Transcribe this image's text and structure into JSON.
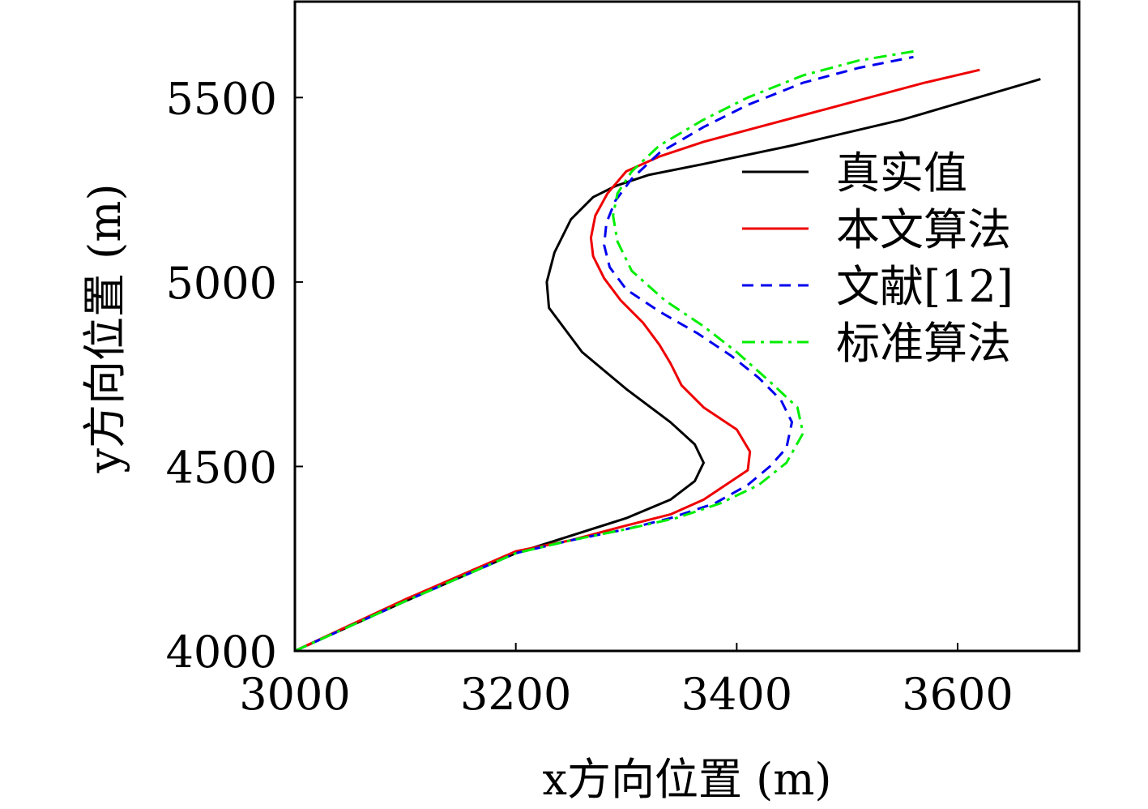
{
  "chart_data": {
    "type": "line",
    "xlabel": "x方向位置 (m)",
    "ylabel": "y方向位置 (m)",
    "xlim": [
      3000,
      3710
    ],
    "ylim": [
      4000,
      5760
    ],
    "xticks": [
      "3000",
      "3200",
      "3400",
      "3600"
    ],
    "yticks": [
      "4000",
      "4500",
      "5000",
      "5500"
    ],
    "grid": false,
    "legend_position": "right",
    "series": [
      {
        "name": "真实值",
        "color": "#000000",
        "dash": "solid",
        "x": [
          3000,
          3100,
          3200,
          3300,
          3340,
          3362,
          3370,
          3362,
          3340,
          3300,
          3260,
          3230,
          3228,
          3235,
          3250,
          3270,
          3290,
          3320,
          3370,
          3450,
          3550,
          3675
        ],
        "y": [
          4000,
          4135,
          4265,
          4360,
          4410,
          4460,
          4510,
          4560,
          4620,
          4710,
          4810,
          4930,
          5000,
          5080,
          5170,
          5230,
          5260,
          5290,
          5320,
          5370,
          5440,
          5550
        ]
      },
      {
        "name": "本文算法",
        "color": "#ee0000",
        "dash": "solid",
        "x": [
          3000,
          3100,
          3200,
          3250,
          3300,
          3340,
          3370,
          3390,
          3410,
          3412,
          3400,
          3370,
          3350,
          3340,
          3330,
          3315,
          3295,
          3280,
          3270,
          3268,
          3272,
          3283,
          3300,
          3330,
          3370,
          3420,
          3470,
          3520,
          3570,
          3620
        ],
        "y": [
          4000,
          4140,
          4270,
          4300,
          4340,
          4370,
          4410,
          4450,
          4490,
          4540,
          4600,
          4660,
          4720,
          4780,
          4830,
          4890,
          4950,
          5010,
          5070,
          5120,
          5180,
          5240,
          5300,
          5340,
          5380,
          5420,
          5460,
          5500,
          5540,
          5575
        ]
      },
      {
        "name": "文献[12]",
        "color": "#0000ee",
        "dash": "dashed",
        "x": [
          3000,
          3100,
          3200,
          3250,
          3300,
          3340,
          3380,
          3410,
          3430,
          3445,
          3450,
          3440,
          3420,
          3395,
          3365,
          3330,
          3300,
          3285,
          3280,
          3282,
          3290,
          3305,
          3330,
          3370,
          3410,
          3460,
          3510,
          3560
        ],
        "y": [
          4000,
          4135,
          4265,
          4300,
          4330,
          4360,
          4400,
          4450,
          4500,
          4550,
          4620,
          4680,
          4740,
          4800,
          4860,
          4920,
          4980,
          5040,
          5100,
          5160,
          5220,
          5280,
          5350,
          5420,
          5480,
          5540,
          5580,
          5610
        ]
      },
      {
        "name": "标准算法",
        "color": "#00ee00",
        "dash": "dashdot",
        "x": [
          3000,
          3100,
          3200,
          3250,
          3300,
          3345,
          3385,
          3420,
          3445,
          3460,
          3455,
          3430,
          3400,
          3370,
          3335,
          3305,
          3292,
          3288,
          3292,
          3305,
          3330,
          3370,
          3410,
          3460,
          3510,
          3560
        ],
        "y": [
          4000,
          4135,
          4265,
          4300,
          4330,
          4360,
          4400,
          4450,
          4510,
          4590,
          4660,
          4730,
          4810,
          4880,
          4950,
          5030,
          5110,
          5180,
          5240,
          5300,
          5370,
          5440,
          5500,
          5560,
          5600,
          5625
        ]
      }
    ]
  }
}
